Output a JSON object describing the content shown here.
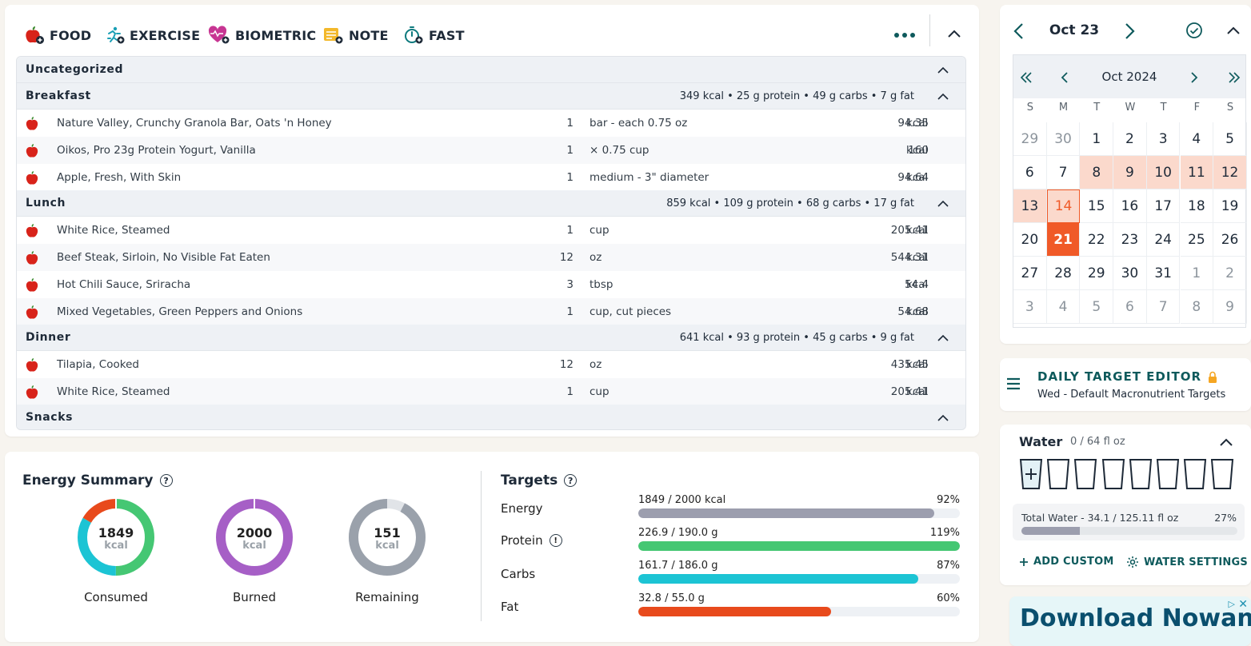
{
  "toolbar": {
    "food": "FOOD",
    "exercise": "EXERCISE",
    "biometric": "BIOMETRIC",
    "note": "NOTE",
    "fast": "FAST"
  },
  "groups": {
    "uncategorized": {
      "name": "Uncategorized"
    },
    "breakfast": {
      "name": "Breakfast",
      "summary": "349 kcal • 25 g protein • 49 g carbs • 7 g fat"
    },
    "lunch": {
      "name": "Lunch",
      "summary": "859 kcal • 109 g protein • 68 g carbs • 17 g fat"
    },
    "dinner": {
      "name": "Dinner",
      "summary": "641 kcal • 93 g protein • 45 g carbs • 9 g fat"
    },
    "snacks": {
      "name": "Snacks"
    }
  },
  "entries": [
    {
      "name": "Nature Valley, Crunchy Granola Bar, Oats 'n Honey",
      "qty": "1",
      "unit": "bar - each 0.75 oz",
      "kcal": "94.35",
      "kunit": "kcal"
    },
    {
      "name": "Oikos, Pro 23g Protein Yogurt, Vanilla",
      "qty": "1",
      "unit": "× 0.75 cup",
      "kcal": "160",
      "kunit": "kcal"
    },
    {
      "name": "Apple, Fresh, With Skin",
      "qty": "1",
      "unit": "medium - 3\" diameter",
      "kcal": "94.64",
      "kunit": "kcal"
    },
    {
      "name": "White Rice, Steamed",
      "qty": "1",
      "unit": "cup",
      "kcal": "205.41",
      "kunit": "kcal"
    },
    {
      "name": "Beef Steak, Sirloin, No Visible Fat Eaten",
      "qty": "12",
      "unit": "oz",
      "kcal": "544.31",
      "kunit": "kcal"
    },
    {
      "name": "Hot Chili Sauce, Sriracha",
      "qty": "3",
      "unit": "tbsp",
      "kcal": "54.4",
      "kunit": "kcal"
    },
    {
      "name": "Mixed Vegetables, Green Peppers and Onions",
      "qty": "1",
      "unit": "cup, cut pieces",
      "kcal": "54.68",
      "kunit": "kcal"
    },
    {
      "name": "Tilapia, Cooked",
      "qty": "12",
      "unit": "oz",
      "kcal": "435.45",
      "kunit": "kcal"
    },
    {
      "name": "White Rice, Steamed",
      "qty": "1",
      "unit": "cup",
      "kcal": "205.41",
      "kunit": "kcal"
    }
  ],
  "energy": {
    "title": "Energy Summary",
    "consumed": {
      "value": "1849",
      "unit": "kcal",
      "label": "Consumed"
    },
    "burned": {
      "value": "2000",
      "unit": "kcal",
      "label": "Burned"
    },
    "remaining": {
      "value": "151",
      "unit": "kcal",
      "label": "Remaining"
    }
  },
  "targets": {
    "title": "Targets",
    "items": [
      {
        "name": "Energy",
        "value": "1849 / 2000 kcal",
        "pct": "92%",
        "fill": 0.92,
        "color": "#9c9eae"
      },
      {
        "name": "Protein",
        "value": "226.9 / 190.0 g",
        "pct": "119%",
        "fill": 1.0,
        "color": "#45c773"
      },
      {
        "name": "Carbs",
        "value": "161.7 / 186.0 g",
        "pct": "87%",
        "fill": 0.87,
        "color": "#1cc4d4"
      },
      {
        "name": "Fat",
        "value": "32.8 / 55.0 g",
        "pct": "60%",
        "fill": 0.6,
        "color": "#e84a1c"
      }
    ]
  },
  "calendar": {
    "date": "Oct 23",
    "month": "Oct 2024",
    "dow": [
      "S",
      "M",
      "T",
      "W",
      "T",
      "F",
      "S"
    ],
    "days": [
      "29",
      "30",
      "1",
      "2",
      "3",
      "4",
      "5",
      "6",
      "7",
      "8",
      "9",
      "10",
      "11",
      "12",
      "13",
      "14",
      "15",
      "16",
      "17",
      "18",
      "19",
      "20",
      "21",
      "22",
      "23",
      "24",
      "25",
      "26",
      "27",
      "28",
      "29",
      "30",
      "31",
      "1",
      "2",
      "3",
      "4",
      "5",
      "6",
      "7",
      "8",
      "9"
    ]
  },
  "dte": {
    "title": "DAILY TARGET EDITOR",
    "subtitle": "Wed - Default Macronutrient Targets"
  },
  "water": {
    "title": "Water",
    "amount": "0 / 64 fl oz",
    "total_label": "Total Water - 34.1 / 125.11 fl oz",
    "total_pct": "27%",
    "total_fill": 0.27,
    "add_custom": "ADD CUSTOM",
    "settings": "WATER SETTINGS"
  },
  "ad": {
    "text": "Download Nowand Print"
  },
  "colors": {
    "accent": "#f05a28",
    "teal": "#0e5a5c",
    "consumed_green": "#45c773",
    "consumed_cyan": "#1cc4d4",
    "consumed_red": "#e84a1c",
    "burned_purple": "#a65fc6",
    "remaining_gray": "#9aa1ab"
  }
}
